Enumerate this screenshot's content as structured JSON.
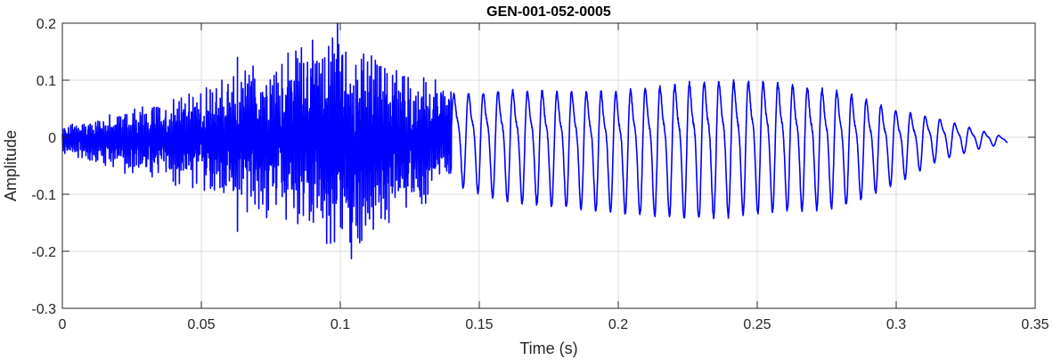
{
  "chart_data": {
    "type": "line",
    "title": "GEN-001-052-0005",
    "xlabel": "Time (s)",
    "ylabel": "Amplitude",
    "xlim": [
      0,
      0.35
    ],
    "ylim": [
      -0.3,
      0.2
    ],
    "xticks": [
      0,
      0.05,
      0.1,
      0.15,
      0.2,
      0.25,
      0.3,
      0.35
    ],
    "xtick_labels": [
      "0",
      "0.05",
      "0.1",
      "0.15",
      "0.2",
      "0.25",
      "0.3",
      "0.35"
    ],
    "yticks": [
      -0.3,
      -0.2,
      -0.1,
      0,
      0.1,
      0.2
    ],
    "ytick_labels": [
      "-0.3",
      "-0.2",
      "-0.1",
      "0",
      "0.1",
      "0.2"
    ],
    "grid": true,
    "line_color": "#0000ff",
    "series": [
      {
        "x_start": 0,
        "x_end": 0.34,
        "envelope": {
          "t": [
            0,
            0.02,
            0.05,
            0.06,
            0.075,
            0.09,
            0.1,
            0.11,
            0.125,
            0.14,
            0.16,
            0.2,
            0.23,
            0.25,
            0.28,
            0.3,
            0.315,
            0.33,
            0.34
          ],
          "upper": [
            0.02,
            0.05,
            0.09,
            0.11,
            0.14,
            0.18,
            0.2,
            0.15,
            0.12,
            0.09,
            0.1,
            0.1,
            0.12,
            0.12,
            0.1,
            0.06,
            0.04,
            0.015,
            0.0
          ],
          "lower": [
            -0.03,
            -0.06,
            -0.1,
            -0.12,
            -0.15,
            -0.17,
            -0.21,
            -0.18,
            -0.14,
            -0.08,
            -0.11,
            -0.13,
            -0.14,
            -0.13,
            -0.12,
            -0.08,
            -0.04,
            -0.02,
            -0.01
          ]
        },
        "notable_points": [
          {
            "x": 0.063,
            "y": 0.14
          },
          {
            "x": 0.063,
            "y": -0.165
          },
          {
            "x": 0.099,
            "y": 0.2
          },
          {
            "x": 0.104,
            "y": -0.213
          },
          {
            "x": 0.09,
            "y": 0.17
          },
          {
            "x": 0.107,
            "y": -0.185
          }
        ],
        "periodic_segment": {
          "start": 0.14,
          "end": 0.34,
          "period": 0.0053
        }
      }
    ]
  }
}
